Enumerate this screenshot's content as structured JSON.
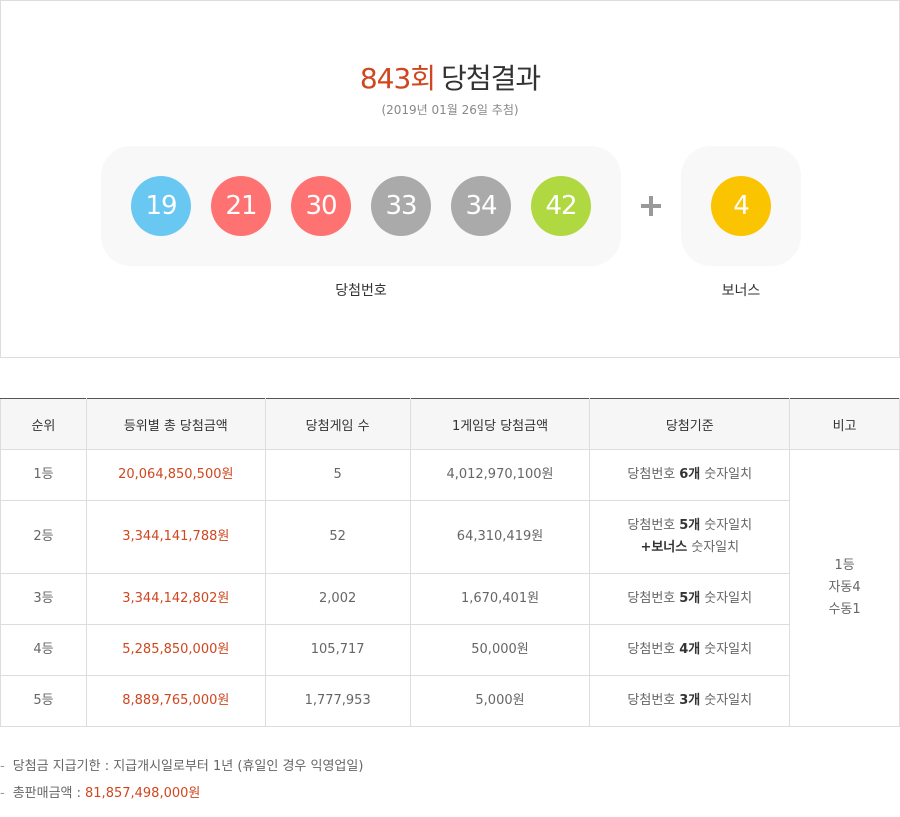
{
  "header": {
    "round": "843회",
    "title": "당첨결과",
    "date": "(2019년 01월 26일 추첨)"
  },
  "draw": {
    "balls": [
      {
        "number": 19,
        "color": "#69c8f2"
      },
      {
        "number": 21,
        "color": "#ff7272"
      },
      {
        "number": 30,
        "color": "#ff7272"
      },
      {
        "number": 33,
        "color": "#aaaaaa"
      },
      {
        "number": 34,
        "color": "#aaaaaa"
      },
      {
        "number": 42,
        "color": "#b0d840"
      }
    ],
    "bonus": {
      "number": 4,
      "color": "#fbc400"
    },
    "numbers_label": "당첨번호",
    "bonus_label": "보너스"
  },
  "table": {
    "headers": [
      "순위",
      "등위별 총 당첨금액",
      "당첨게임 수",
      "1게임당 당첨금액",
      "당첨기준",
      "비고"
    ],
    "rows": [
      {
        "rank": "1등",
        "total": "20,064,850,500원",
        "games": "5",
        "per_game": "4,012,970,100원",
        "criteria": [
          [
            {
              "text": "당첨번호"
            },
            {
              "text": "6개",
              "bold": true
            },
            {
              "text": "숫자일치"
            }
          ]
        ]
      },
      {
        "rank": "2등",
        "total": "3,344,141,788원",
        "games": "52",
        "per_game": "64,310,419원",
        "criteria": [
          [
            {
              "text": "당첨번호"
            },
            {
              "text": "5개",
              "bold": true
            },
            {
              "text": "숫자일치"
            }
          ],
          [
            {
              "text": "+보너스",
              "bold": true
            },
            {
              "text": "숫자일치"
            }
          ]
        ]
      },
      {
        "rank": "3등",
        "total": "3,344,142,802원",
        "games": "2,002",
        "per_game": "1,670,401원",
        "criteria": [
          [
            {
              "text": "당첨번호"
            },
            {
              "text": "5개",
              "bold": true
            },
            {
              "text": "숫자일치"
            }
          ]
        ]
      },
      {
        "rank": "4등",
        "total": "5,285,850,000원",
        "games": "105,717",
        "per_game": "50,000원",
        "criteria": [
          [
            {
              "text": "당첨번호"
            },
            {
              "text": "4개",
              "bold": true
            },
            {
              "text": "숫자일치"
            }
          ]
        ]
      },
      {
        "rank": "5등",
        "total": "8,889,765,000원",
        "games": "1,777,953",
        "per_game": "5,000원",
        "criteria": [
          [
            {
              "text": "당첨번호"
            },
            {
              "text": "3개",
              "bold": true
            },
            {
              "text": "숫자일치"
            }
          ]
        ]
      }
    ],
    "note": [
      "1등",
      "자동4",
      "수동1"
    ]
  },
  "footer": {
    "deadline": "당첨금 지급기한 : 지급개시일로부터 1년 (휴일인 경우 익영업일)",
    "sales_label": "총판매금액 :",
    "sales_value": "81,857,498,000원"
  }
}
